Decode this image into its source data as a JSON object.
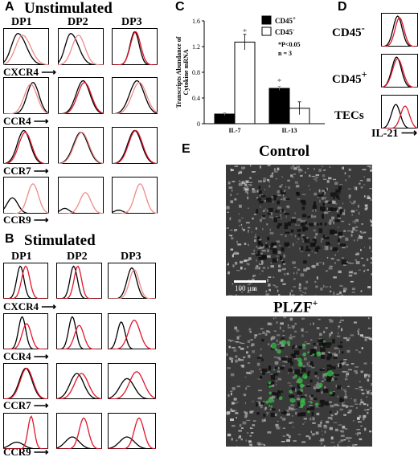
{
  "panels": {
    "A": {
      "letter": "A",
      "title": "Unstimulated",
      "columns": [
        "DP1",
        "DP2",
        "DP3"
      ],
      "rows": [
        "CXCR4",
        "CCR4",
        "CCR7",
        "CCR9"
      ]
    },
    "B": {
      "letter": "B",
      "title": "Stimulated",
      "columns": [
        "DP1",
        "DP2",
        "DP3"
      ],
      "rows": [
        "CXCR4",
        "CCR4",
        "CCR7",
        "CCR9"
      ]
    },
    "C": {
      "letter": "C"
    },
    "D": {
      "letter": "D",
      "rows": [
        "CD45",
        "CD45",
        "TECs"
      ],
      "row_superscripts": [
        "-",
        "+",
        ""
      ],
      "xlabel": "IL-21"
    },
    "E": {
      "letter": "E",
      "top_title": "Control",
      "bottom_title": "PLZF",
      "bottom_title_sup": "+",
      "scalebar": "100 µm"
    }
  },
  "colors": {
    "black_trace": "#000000",
    "red_trace": "#e0162b",
    "pink_trace": "#f08a8a",
    "micro_bg": "#3a3a3a",
    "green_signal": "#39c24a"
  },
  "chart_data": {
    "type": "bar",
    "categories": [
      "IL-7",
      "IL-13"
    ],
    "series": [
      {
        "name": "CD45+",
        "values": [
          0.15,
          0.55
        ],
        "errors": [
          0.02,
          0.03
        ]
      },
      {
        "name": "CD45-",
        "values": [
          1.27,
          0.24
        ],
        "errors": [
          0.12,
          0.1
        ]
      }
    ],
    "legend": [
      {
        "base": "CD45",
        "sup": "+"
      },
      {
        "base": "CD45",
        "sup": "-"
      }
    ],
    "legend_placement": "top-right",
    "significance_marks": [
      "*",
      "*"
    ],
    "annotation": [
      "*P<0.05",
      "n = 3"
    ],
    "ylabel_lines": [
      "Transcripts Abundance of",
      "Cytokine mRNA"
    ],
    "yticks": [
      "0",
      "0.4",
      "0.8",
      "1.2",
      "1.6"
    ],
    "ylim": [
      0,
      1.6
    ],
    "grid": false
  }
}
